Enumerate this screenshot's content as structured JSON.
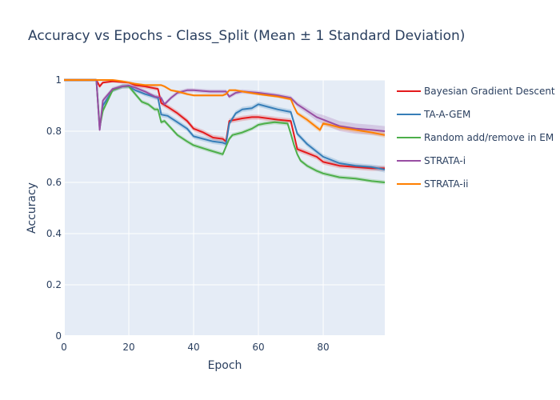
{
  "chart_data": {
    "type": "line",
    "title": "Accuracy vs Epochs - Class_Split (Mean ± 1 Standard Deviation)",
    "xlabel": "Epoch",
    "ylabel": "Accuracy",
    "xlim": [
      0,
      99
    ],
    "ylim": [
      0,
      1
    ],
    "xticks": [
      0,
      20,
      40,
      60,
      80
    ],
    "yticks": [
      0,
      0.2,
      0.4,
      0.6,
      0.8,
      1
    ],
    "ytick_labels": [
      "0",
      "0.2",
      "0.4",
      "0.6",
      "0.8",
      "1"
    ],
    "grid": true,
    "legend_position": "right",
    "background": "#e5ecf6",
    "series": [
      {
        "name": "Bayesian Gradient Descent",
        "color": "#e41a1c",
        "x": [
          0,
          10,
          11,
          12,
          15,
          20,
          22,
          25,
          29,
          30,
          32,
          35,
          38,
          40,
          43,
          46,
          49,
          50,
          51,
          53,
          55,
          58,
          60,
          63,
          66,
          70,
          72,
          75,
          78,
          80,
          85,
          90,
          95,
          99
        ],
        "y": [
          1.0,
          1.0,
          0.975,
          0.99,
          0.995,
          0.99,
          0.98,
          0.975,
          0.965,
          0.91,
          0.895,
          0.87,
          0.84,
          0.81,
          0.795,
          0.775,
          0.77,
          0.76,
          0.84,
          0.845,
          0.85,
          0.855,
          0.855,
          0.85,
          0.845,
          0.84,
          0.73,
          0.715,
          0.7,
          0.68,
          0.665,
          0.66,
          0.655,
          0.655
        ],
        "band": [
          0.005,
          0.005,
          0.008,
          0.005,
          0.005,
          0.005,
          0.008,
          0.008,
          0.008,
          0.01,
          0.01,
          0.01,
          0.01,
          0.01,
          0.01,
          0.01,
          0.01,
          0.01,
          0.01,
          0.01,
          0.01,
          0.01,
          0.01,
          0.01,
          0.01,
          0.01,
          0.01,
          0.01,
          0.01,
          0.01,
          0.01,
          0.01,
          0.01,
          0.01
        ]
      },
      {
        "name": "TA-A-GEM",
        "color": "#377eb8",
        "x": [
          0,
          10,
          11,
          12,
          15,
          18,
          20,
          22,
          25,
          29,
          30,
          32,
          35,
          38,
          40,
          43,
          46,
          49,
          50,
          51,
          53,
          55,
          58,
          60,
          63,
          66,
          70,
          72,
          75,
          78,
          80,
          85,
          90,
          95,
          99
        ],
        "y": [
          1.0,
          1.0,
          0.81,
          0.9,
          0.96,
          0.975,
          0.975,
          0.96,
          0.945,
          0.93,
          0.865,
          0.86,
          0.835,
          0.81,
          0.78,
          0.77,
          0.76,
          0.755,
          0.75,
          0.83,
          0.87,
          0.885,
          0.89,
          0.905,
          0.895,
          0.885,
          0.875,
          0.79,
          0.75,
          0.72,
          0.7,
          0.675,
          0.665,
          0.66,
          0.65
        ],
        "band": [
          0.005,
          0.005,
          0.01,
          0.01,
          0.008,
          0.008,
          0.008,
          0.008,
          0.008,
          0.01,
          0.01,
          0.01,
          0.01,
          0.01,
          0.01,
          0.01,
          0.01,
          0.01,
          0.01,
          0.01,
          0.01,
          0.01,
          0.01,
          0.01,
          0.01,
          0.01,
          0.01,
          0.01,
          0.01,
          0.01,
          0.01,
          0.01,
          0.01,
          0.01,
          0.012
        ]
      },
      {
        "name": "Random add/remove in EM",
        "color": "#4daf4a",
        "x": [
          0,
          10,
          11,
          12,
          15,
          18,
          20,
          22,
          24,
          26,
          28,
          29,
          30,
          31,
          35,
          38,
          40,
          45,
          49,
          50,
          51,
          52,
          55,
          58,
          60,
          62,
          65,
          69,
          70,
          71,
          72,
          73,
          75,
          78,
          80,
          85,
          90,
          95,
          99
        ],
        "y": [
          1.0,
          1.0,
          0.815,
          0.88,
          0.96,
          0.975,
          0.975,
          0.945,
          0.915,
          0.905,
          0.885,
          0.885,
          0.835,
          0.84,
          0.785,
          0.76,
          0.745,
          0.725,
          0.71,
          0.74,
          0.77,
          0.785,
          0.795,
          0.81,
          0.825,
          0.83,
          0.835,
          0.83,
          0.79,
          0.745,
          0.71,
          0.685,
          0.665,
          0.645,
          0.635,
          0.62,
          0.615,
          0.605,
          0.6
        ],
        "band": [
          0.005,
          0.005,
          0.01,
          0.01,
          0.008,
          0.008,
          0.008,
          0.008,
          0.008,
          0.008,
          0.008,
          0.008,
          0.008,
          0.008,
          0.008,
          0.008,
          0.008,
          0.008,
          0.008,
          0.008,
          0.008,
          0.008,
          0.008,
          0.008,
          0.008,
          0.008,
          0.008,
          0.008,
          0.008,
          0.008,
          0.008,
          0.008,
          0.008,
          0.008,
          0.008,
          0.008,
          0.008,
          0.008,
          0.008
        ]
      },
      {
        "name": "STRATA-i",
        "color": "#984ea3",
        "x": [
          0,
          10,
          11,
          12,
          15,
          18,
          20,
          22,
          25,
          28,
          30,
          31,
          33,
          35,
          38,
          40,
          45,
          49,
          50,
          51,
          53,
          55,
          60,
          63,
          66,
          70,
          72,
          75,
          78,
          80,
          85,
          90,
          95,
          99
        ],
        "y": [
          1.0,
          1.0,
          0.805,
          0.92,
          0.965,
          0.975,
          0.978,
          0.97,
          0.955,
          0.935,
          0.93,
          0.905,
          0.93,
          0.95,
          0.96,
          0.96,
          0.955,
          0.955,
          0.955,
          0.935,
          0.95,
          0.955,
          0.95,
          0.945,
          0.94,
          0.93,
          0.905,
          0.88,
          0.855,
          0.845,
          0.82,
          0.81,
          0.805,
          0.8
        ],
        "band": [
          0.005,
          0.005,
          0.01,
          0.01,
          0.008,
          0.008,
          0.008,
          0.008,
          0.008,
          0.008,
          0.008,
          0.008,
          0.008,
          0.008,
          0.008,
          0.008,
          0.008,
          0.008,
          0.008,
          0.008,
          0.008,
          0.008,
          0.008,
          0.008,
          0.008,
          0.008,
          0.01,
          0.012,
          0.015,
          0.018,
          0.02,
          0.02,
          0.02,
          0.02
        ]
      },
      {
        "name": "STRATA-ii",
        "color": "#ff7f00",
        "x": [
          0,
          10,
          15,
          18,
          20,
          22,
          25,
          30,
          31,
          33,
          35,
          38,
          40,
          45,
          49,
          50,
          51,
          53,
          55,
          60,
          63,
          66,
          70,
          71,
          72,
          75,
          78,
          79,
          80,
          82,
          85,
          90,
          95,
          99
        ],
        "y": [
          1.0,
          1.0,
          1.0,
          0.995,
          0.99,
          0.985,
          0.98,
          0.98,
          0.975,
          0.96,
          0.955,
          0.945,
          0.94,
          0.94,
          0.94,
          0.945,
          0.96,
          0.96,
          0.955,
          0.945,
          0.94,
          0.935,
          0.925,
          0.895,
          0.87,
          0.845,
          0.815,
          0.805,
          0.83,
          0.825,
          0.815,
          0.805,
          0.795,
          0.785
        ],
        "band": [
          0.004,
          0.004,
          0.004,
          0.004,
          0.004,
          0.004,
          0.004,
          0.004,
          0.005,
          0.005,
          0.005,
          0.005,
          0.005,
          0.005,
          0.005,
          0.005,
          0.005,
          0.005,
          0.005,
          0.005,
          0.005,
          0.005,
          0.006,
          0.006,
          0.008,
          0.01,
          0.01,
          0.01,
          0.01,
          0.01,
          0.01,
          0.01,
          0.01,
          0.01
        ]
      }
    ]
  }
}
